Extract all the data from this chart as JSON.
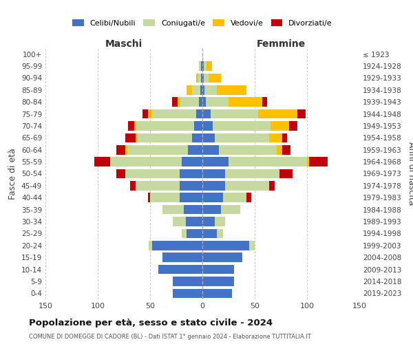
{
  "age_groups": [
    "0-4",
    "5-9",
    "10-14",
    "15-19",
    "20-24",
    "25-29",
    "30-34",
    "35-39",
    "40-44",
    "45-49",
    "50-54",
    "55-59",
    "60-64",
    "65-69",
    "70-74",
    "75-79",
    "80-84",
    "85-89",
    "90-94",
    "95-99",
    "100+"
  ],
  "birth_years": [
    "2019-2023",
    "2014-2018",
    "2009-2013",
    "2004-2008",
    "1999-2003",
    "1994-1998",
    "1989-1993",
    "1984-1988",
    "1979-1983",
    "1974-1978",
    "1969-1973",
    "1964-1968",
    "1959-1963",
    "1954-1958",
    "1949-1953",
    "1944-1948",
    "1939-1943",
    "1934-1938",
    "1929-1933",
    "1924-1928",
    "≤ 1923"
  ],
  "maschi_celibi": [
    28,
    28,
    42,
    38,
    48,
    15,
    16,
    18,
    22,
    22,
    22,
    20,
    14,
    10,
    8,
    6,
    3,
    2,
    1,
    1,
    0
  ],
  "maschi_coniugati": [
    0,
    0,
    0,
    0,
    3,
    5,
    12,
    20,
    28,
    42,
    52,
    68,
    58,
    52,
    55,
    42,
    18,
    8,
    3,
    2,
    0
  ],
  "maschi_vedovi": [
    0,
    0,
    0,
    0,
    0,
    0,
    0,
    0,
    0,
    0,
    0,
    0,
    2,
    2,
    2,
    4,
    3,
    5,
    2,
    0,
    0
  ],
  "maschi_divorziati": [
    0,
    0,
    0,
    0,
    0,
    0,
    0,
    0,
    2,
    5,
    8,
    15,
    8,
    10,
    6,
    5,
    5,
    0,
    0,
    0,
    0
  ],
  "femmine_celibi": [
    28,
    30,
    30,
    38,
    45,
    14,
    12,
    18,
    20,
    22,
    22,
    25,
    16,
    12,
    10,
    8,
    3,
    2,
    1,
    1,
    0
  ],
  "femmine_coniugati": [
    0,
    0,
    0,
    0,
    5,
    6,
    10,
    18,
    22,
    42,
    52,
    75,
    55,
    52,
    55,
    45,
    22,
    12,
    5,
    3,
    0
  ],
  "femmine_vedovi": [
    0,
    0,
    0,
    0,
    0,
    0,
    0,
    0,
    0,
    0,
    0,
    2,
    5,
    12,
    18,
    38,
    32,
    28,
    12,
    5,
    0
  ],
  "femmine_divorziati": [
    0,
    0,
    0,
    0,
    0,
    0,
    0,
    0,
    5,
    5,
    12,
    18,
    8,
    5,
    8,
    8,
    5,
    0,
    0,
    0,
    0
  ],
  "color_celibi": "#4472c4",
  "color_coniugati": "#c5d9a0",
  "color_vedovi": "#ffc000",
  "color_divorziati": "#c0000a",
  "title": "Popolazione per età, sesso e stato civile - 2024",
  "subtitle": "COMUNE DI DOMEGGE DI CADORE (BL) - Dati ISTAT 1° gennaio 2024 - Elaborazione TUTTITALIA.IT",
  "ylabel_left": "Fasce di età",
  "ylabel_right": "Anni di nascita",
  "xlabel_left": "Maschi",
  "xlabel_right": "Femmine",
  "xlim": 150,
  "background_color": "#ffffff",
  "grid_color": "#cccccc"
}
